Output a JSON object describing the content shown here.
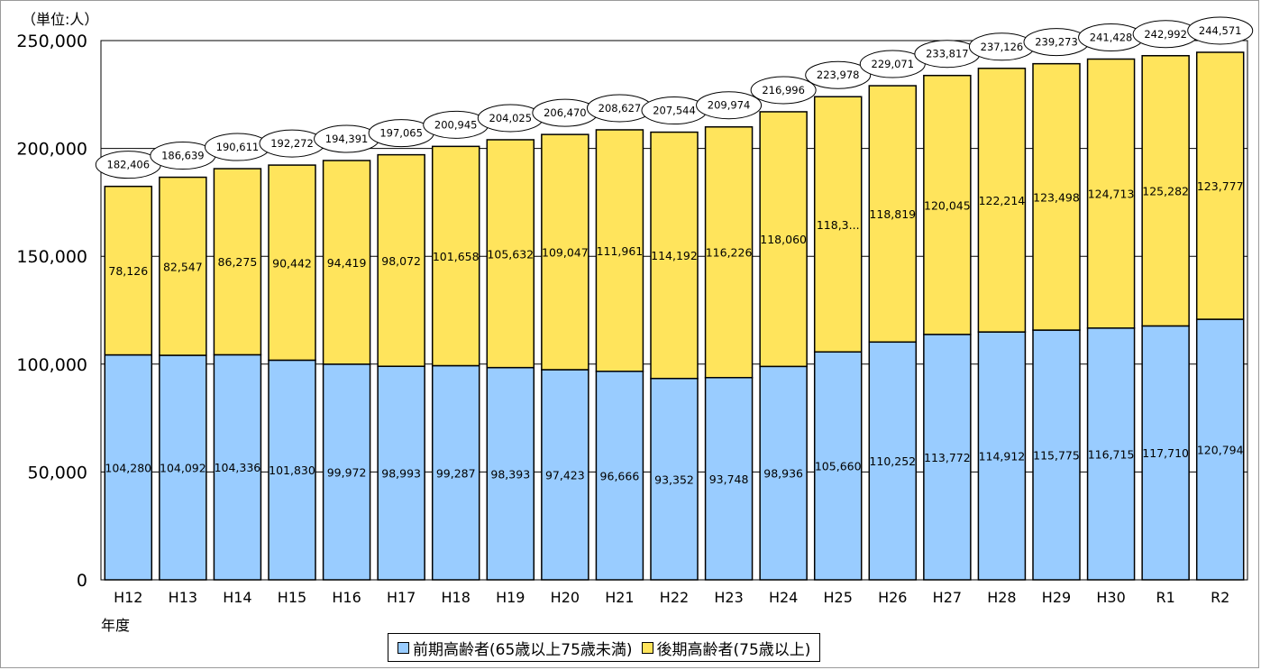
{
  "chart_data": {
    "type": "bar",
    "stacked": true,
    "unit": "（単位:人）",
    "xlabel": "年度",
    "ylim": [
      0,
      250000
    ],
    "yticks": [
      0,
      50000,
      100000,
      150000,
      200000,
      250000
    ],
    "ytick_labels": [
      "0",
      "50,000",
      "100,000",
      "150,000",
      "200,000",
      "250,000"
    ],
    "grid": true,
    "legend_position": "bottom",
    "categories": [
      "H12",
      "H13",
      "H14",
      "H15",
      "H16",
      "H17",
      "H18",
      "H19",
      "H20",
      "H21",
      "H22",
      "H23",
      "H24",
      "H25",
      "H26",
      "H27",
      "H28",
      "H29",
      "H30",
      "R1",
      "R2"
    ],
    "series": [
      {
        "name": "前期高齢者(65歳以上75歳未満)",
        "color": "#99ccff",
        "values": [
          104280,
          104092,
          104336,
          101830,
          99972,
          98993,
          99287,
          98393,
          97423,
          96666,
          93352,
          93748,
          98936,
          105660,
          110252,
          113772,
          114912,
          115775,
          116715,
          117710,
          120794
        ],
        "labels": [
          "104,280",
          "104,092",
          "104,336",
          "101,830",
          "99,972",
          "98,993",
          "99,287",
          "98,393",
          "97,423",
          "96,666",
          "93,352",
          "93,748",
          "98,936",
          "105,660",
          "110,252",
          "113,772",
          "114,912",
          "115,775",
          "116,715",
          "117,710",
          "120,794"
        ]
      },
      {
        "name": "後期高齢者(75歳以上)",
        "color": "#ffe45c",
        "values": [
          78126,
          82547,
          86275,
          90442,
          94419,
          98072,
          101658,
          105632,
          109047,
          111961,
          114192,
          116226,
          118060,
          118318,
          118819,
          120045,
          122214,
          123498,
          124713,
          125282,
          123777
        ],
        "labels": [
          "78,126",
          "82,547",
          "86,275",
          "90,442",
          "94,419",
          "98,072",
          "101,658",
          "105,632",
          "109,047",
          "111,961",
          "114,192",
          "116,226",
          "118,060",
          "118,3...",
          "118,819",
          "120,045",
          "122,214",
          "123,498",
          "124,713",
          "125,282",
          "123,777"
        ]
      }
    ],
    "totals": [
      182406,
      186639,
      190611,
      192272,
      194391,
      197065,
      200945,
      204025,
      206470,
      208627,
      207544,
      209974,
      216996,
      223978,
      229071,
      233817,
      237126,
      239273,
      241428,
      242992,
      244571
    ],
    "total_labels": [
      "182,406",
      "186,639",
      "190,611",
      "192,272",
      "194,391",
      "197,065",
      "200,945",
      "204,025",
      "206,470",
      "208,627",
      "207,544",
      "209,974",
      "216,996",
      "223,978",
      "229,071",
      "233,817",
      "237,126",
      "239,273",
      "241,428",
      "242,992",
      "244,571"
    ]
  }
}
